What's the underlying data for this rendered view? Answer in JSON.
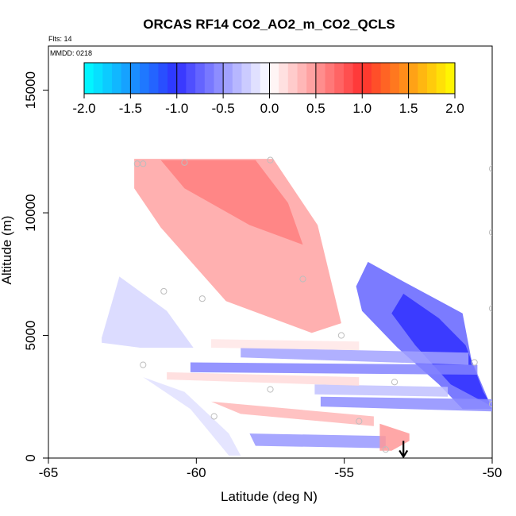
{
  "chart_data": {
    "type": "heatmap",
    "title": "ORCAS RF14 CO2_AO2_m_CO2_QCLS",
    "flights_label": "Flts: 14",
    "date_label": "MMDD: 0218",
    "xlabel": "Latitude (deg N)",
    "ylabel": "Altitude (m)",
    "xlim": [
      -65,
      -50
    ],
    "ylim": [
      0,
      16800
    ],
    "x_ticks": [
      -65,
      -60,
      -55,
      -50
    ],
    "x_tick_labels": [
      "-65",
      "-60",
      "-55",
      "-50"
    ],
    "y_ticks": [
      0,
      5000,
      10000,
      15000
    ],
    "y_tick_labels": [
      "0",
      "5000",
      "10000",
      "15000"
    ],
    "colorbar": {
      "ticks": [
        -2.0,
        -1.5,
        -1.0,
        -0.5,
        0.0,
        0.5,
        1.0,
        1.5,
        2.0
      ],
      "tick_labels": [
        "-2.0",
        "-1.5",
        "-1.0",
        "-0.5",
        "0.0",
        "0.5",
        "1.0",
        "1.5",
        "2.0"
      ],
      "colors": {
        "-2.0": "#00ffff",
        "-1.0": "#3030ff",
        "0.0": "#ffffff",
        "1.0": "#ff3030",
        "2.0": "#ffff00"
      }
    },
    "bands": [
      {
        "name": "upper-red-wedge",
        "polygon": [
          [
            -62.1,
            12200
          ],
          [
            -57.4,
            12200
          ],
          [
            -55.9,
            9500
          ],
          [
            -55.1,
            5500
          ],
          [
            -56.1,
            5100
          ],
          [
            -59.0,
            6400
          ],
          [
            -61.2,
            9400
          ],
          [
            -62.1,
            11000
          ]
        ],
        "value": 0.45
      },
      {
        "name": "upper-red-core",
        "polygon": [
          [
            -61.2,
            12150
          ],
          [
            -58.0,
            12150
          ],
          [
            -56.9,
            10400
          ],
          [
            -56.4,
            8700
          ],
          [
            -58.2,
            9500
          ],
          [
            -60.4,
            11000
          ]
        ],
        "value": 0.62
      },
      {
        "name": "left-blue-patch",
        "polygon": [
          [
            -63.2,
            4900
          ],
          [
            -62.6,
            7400
          ],
          [
            -61.0,
            6000
          ],
          [
            -60.1,
            4500
          ],
          [
            -61.9,
            4500
          ],
          [
            -63.2,
            4700
          ]
        ],
        "value": -0.2
      },
      {
        "name": "right-blue-diagonal",
        "polygon": [
          [
            -54.2,
            8000
          ],
          [
            -53.0,
            7200
          ],
          [
            -51.0,
            5900
          ],
          [
            -50.7,
            4000
          ],
          [
            -50.0,
            2000
          ],
          [
            -51.0,
            2000
          ],
          [
            -51.8,
            3000
          ],
          [
            -53.2,
            4500
          ],
          [
            -54.4,
            6000
          ],
          [
            -54.6,
            7000
          ]
        ],
        "value": -0.75
      },
      {
        "name": "right-blue-core",
        "polygon": [
          [
            -53.0,
            6700
          ],
          [
            -51.8,
            5700
          ],
          [
            -50.9,
            4600
          ],
          [
            -50.3,
            2700
          ],
          [
            -50.0,
            2100
          ],
          [
            -51.4,
            3000
          ],
          [
            -52.6,
            4600
          ],
          [
            -53.4,
            5900
          ]
        ],
        "value": -1.0
      },
      {
        "name": "blue-stream-5k",
        "polygon": [
          [
            -58.5,
            4500
          ],
          [
            -50.8,
            4300
          ],
          [
            -50.8,
            3800
          ],
          [
            -58.5,
            4100
          ]
        ],
        "value": -0.45
      },
      {
        "name": "blue-stream-4k",
        "polygon": [
          [
            -60.2,
            3900
          ],
          [
            -50.5,
            3800
          ],
          [
            -50.5,
            3400
          ],
          [
            -60.2,
            3500
          ]
        ],
        "value": -0.6
      },
      {
        "name": "blue-stream-3k",
        "polygon": [
          [
            -56.0,
            3000
          ],
          [
            -51.5,
            2900
          ],
          [
            -51.5,
            2500
          ],
          [
            -56.0,
            2600
          ]
        ],
        "value": -0.3
      },
      {
        "name": "blue-stream-2k",
        "polygon": [
          [
            -55.8,
            2500
          ],
          [
            -50.0,
            2400
          ],
          [
            -50.0,
            1900
          ],
          [
            -55.8,
            2100
          ]
        ],
        "value": -0.55
      },
      {
        "name": "red-stream-4.6k",
        "polygon": [
          [
            -59.5,
            4850
          ],
          [
            -54.5,
            4750
          ],
          [
            -54.5,
            4400
          ],
          [
            -59.5,
            4500
          ]
        ],
        "value": 0.12
      },
      {
        "name": "red-stream-3.2k",
        "polygon": [
          [
            -61.0,
            3500
          ],
          [
            -54.5,
            3300
          ],
          [
            -54.5,
            2950
          ],
          [
            -61.0,
            3200
          ]
        ],
        "value": 0.18
      },
      {
        "name": "red-stream-1.8k",
        "polygon": [
          [
            -59.5,
            2300
          ],
          [
            -54.0,
            1700
          ],
          [
            -54.0,
            1300
          ],
          [
            -58.5,
            1800
          ]
        ],
        "value": 0.35
      },
      {
        "name": "lower-blue-stream",
        "polygon": [
          [
            -58.2,
            1000
          ],
          [
            -53.6,
            900
          ],
          [
            -53.6,
            400
          ],
          [
            -58.0,
            500
          ]
        ],
        "value": -0.5
      },
      {
        "name": "lower-red-plume",
        "polygon": [
          [
            -53.8,
            1400
          ],
          [
            -52.8,
            1000
          ],
          [
            -52.8,
            700
          ],
          [
            -53.4,
            300
          ],
          [
            -53.8,
            300
          ]
        ],
        "value": 0.5
      },
      {
        "name": "left-pale-curtain",
        "polygon": [
          [
            -61.8,
            3300
          ],
          [
            -60.4,
            2700
          ],
          [
            -58.9,
            1000
          ],
          [
            -58.5,
            100
          ],
          [
            -58.9,
            100
          ],
          [
            -60.2,
            2000
          ]
        ],
        "value": -0.15
      }
    ],
    "points": [
      {
        "x": -62.0,
        "y": 12000
      },
      {
        "x": -61.8,
        "y": 12000
      },
      {
        "x": -60.4,
        "y": 12050
      },
      {
        "x": -57.5,
        "y": 12150
      },
      {
        "x": -50.0,
        "y": 11800
      },
      {
        "x": -50.0,
        "y": 9200
      },
      {
        "x": -61.1,
        "y": 6800
      },
      {
        "x": -59.8,
        "y": 6500
      },
      {
        "x": -56.4,
        "y": 7300
      },
      {
        "x": -50.0,
        "y": 6100
      },
      {
        "x": -55.1,
        "y": 5000
      },
      {
        "x": -61.8,
        "y": 3800
      },
      {
        "x": -57.5,
        "y": 2800
      },
      {
        "x": -53.3,
        "y": 3100
      },
      {
        "x": -50.6,
        "y": 3900
      },
      {
        "x": -59.4,
        "y": 1700
      },
      {
        "x": -54.5,
        "y": 1500
      },
      {
        "x": -50.0,
        "y": 2200
      },
      {
        "x": -53.6,
        "y": 350
      }
    ],
    "arrow": {
      "x": -53.0,
      "y_from": 700,
      "y_to": 50
    },
    "grid": false,
    "legend": "colorbar inset top"
  }
}
